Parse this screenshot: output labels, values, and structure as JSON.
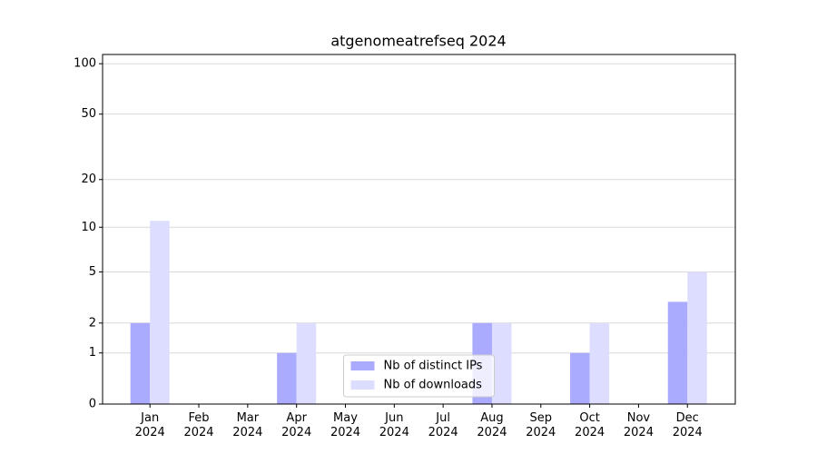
{
  "chart_data": {
    "type": "bar",
    "title": "atgenomeatrefseq 2024",
    "categories": [
      "Jan\n2024",
      "Feb\n2024",
      "Mar\n2024",
      "Apr\n2024",
      "May\n2024",
      "Jun\n2024",
      "Jul\n2024",
      "Aug\n2024",
      "Sep\n2024",
      "Oct\n2024",
      "Nov\n2024",
      "Dec\n2024"
    ],
    "series": [
      {
        "name": "Nb of distinct IPs",
        "color": "#aaaaff",
        "values": [
          2,
          0,
          0,
          1,
          0,
          0,
          0,
          2,
          0,
          1,
          0,
          3
        ]
      },
      {
        "name": "Nb of downloads",
        "color": "#ddddff",
        "values": [
          11,
          0,
          0,
          2,
          0,
          0,
          0,
          2,
          0,
          2,
          0,
          5
        ]
      }
    ],
    "yscale": "log1p",
    "ylim": [
      0,
      113.5
    ],
    "yticks": [
      0,
      1,
      2,
      5,
      10,
      20,
      50,
      100
    ],
    "grid": true,
    "legend": "lower center"
  }
}
